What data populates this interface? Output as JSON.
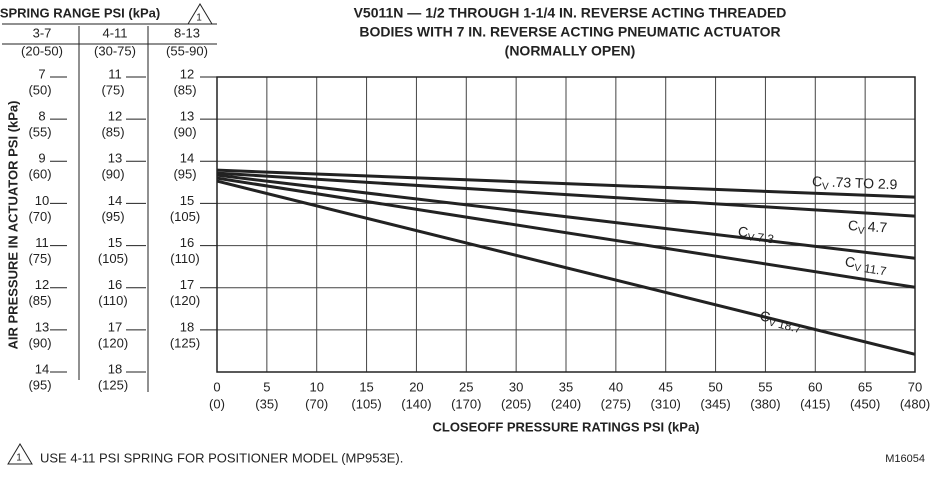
{
  "chart_data": {
    "type": "line",
    "title": [
      "V5011N — 1/2 THROUGH 1-1/4 IN. REVERSE ACTING THREADED",
      "BODIES WITH  7 IN. REVERSE ACTING PNEUMATIC ACTUATOR",
      "(NORMALLY OPEN)"
    ],
    "spring_header": "SPRING RANGE PSI (kPa)",
    "note_marker": "1",
    "y_label": "AIR PRESSURE IN ACTUATOR PSI (kPa)",
    "x_label": "CLOSEOFF  PRESSURE  RATINGS  PSI  (kPa)",
    "footnote": "USE 4-11 PSI SPRING FOR POSITIONER MODEL (MP953E).",
    "figure_id": "M16054",
    "xlim": [
      0,
      70
    ],
    "xticks": [
      {
        "value": 0,
        "label": "0",
        "kpa": "(0)"
      },
      {
        "value": 5,
        "label": "5",
        "kpa": "(35)"
      },
      {
        "value": 10,
        "label": "10",
        "kpa": "(70)"
      },
      {
        "value": 15,
        "label": "15",
        "kpa": "(105)"
      },
      {
        "value": 20,
        "label": "20",
        "kpa": "(140)"
      },
      {
        "value": 25,
        "label": "25",
        "kpa": "(170)"
      },
      {
        "value": 30,
        "label": "30",
        "kpa": "(205)"
      },
      {
        "value": 35,
        "label": "35",
        "kpa": "(240)"
      },
      {
        "value": 40,
        "label": "40",
        "kpa": "(275)"
      },
      {
        "value": 45,
        "label": "45",
        "kpa": "(310)"
      },
      {
        "value": 50,
        "label": "50",
        "kpa": "(345)"
      },
      {
        "value": 55,
        "label": "55",
        "kpa": "(380)"
      },
      {
        "value": 60,
        "label": "60",
        "kpa": "(415)"
      },
      {
        "value": 65,
        "label": "65",
        "kpa": "(450)"
      },
      {
        "value": 70,
        "label": "70",
        "kpa": "(480)"
      }
    ],
    "ylim": [
      12,
      19
    ],
    "y_inverted": true,
    "spring_scales": [
      {
        "header": "3-7",
        "header_kpa": "(20-50)",
        "ylim": [
          7,
          14
        ],
        "ticks": [
          {
            "value": 7,
            "label": "7",
            "kpa": "(50)"
          },
          {
            "value": 8,
            "label": "8",
            "kpa": "(55)"
          },
          {
            "value": 9,
            "label": "9",
            "kpa": "(60)"
          },
          {
            "value": 10,
            "label": "10",
            "kpa": "(70)"
          },
          {
            "value": 11,
            "label": "11",
            "kpa": "(75)"
          },
          {
            "value": 12,
            "label": "12",
            "kpa": "(85)"
          },
          {
            "value": 13,
            "label": "13",
            "kpa": "(90)"
          },
          {
            "value": 14,
            "label": "14",
            "kpa": "(95)"
          }
        ]
      },
      {
        "header": "4-11",
        "header_kpa": "(30-75)",
        "ylim": [
          11,
          18
        ],
        "ticks": [
          {
            "value": 11,
            "label": "11",
            "kpa": "(75)"
          },
          {
            "value": 12,
            "label": "12",
            "kpa": "(85)"
          },
          {
            "value": 13,
            "label": "13",
            "kpa": "(90)"
          },
          {
            "value": 14,
            "label": "14",
            "kpa": "(95)"
          },
          {
            "value": 15,
            "label": "15",
            "kpa": "(105)"
          },
          {
            "value": 16,
            "label": "16",
            "kpa": "(110)"
          },
          {
            "value": 17,
            "label": "17",
            "kpa": "(120)"
          },
          {
            "value": 18,
            "label": "18",
            "kpa": "(125)"
          }
        ]
      },
      {
        "header": "8-13",
        "header_kpa": "(55-90)",
        "ylim": [
          12,
          19
        ],
        "ticks": [
          {
            "value": 12,
            "label": "12",
            "kpa": "(85)"
          },
          {
            "value": 13,
            "label": "13",
            "kpa": "(90)"
          },
          {
            "value": 14,
            "label": "14",
            "kpa": "(95)"
          },
          {
            "value": 15,
            "label": "15",
            "kpa": "(105)"
          },
          {
            "value": 16,
            "label": "16",
            "kpa": "(110)"
          },
          {
            "value": 17,
            "label": "17",
            "kpa": "(120)"
          },
          {
            "value": 18,
            "label": "18",
            "kpa": "(125)"
          }
        ]
      }
    ],
    "grid": true,
    "cv_symbol": "C",
    "cv_subscript": "V",
    "x": [
      0,
      70
    ],
    "series": [
      {
        "name": ".73 TO 2.9",
        "subscript_value": false,
        "color": "#222222",
        "values": [
          14.21,
          14.85
        ]
      },
      {
        "name": "4.7",
        "subscript_value": false,
        "color": "#222222",
        "values": [
          14.28,
          15.3
        ]
      },
      {
        "name": "7.3",
        "subscript_value": true,
        "color": "#222222",
        "values": [
          14.33,
          16.3
        ]
      },
      {
        "name": "11.7",
        "subscript_value": true,
        "color": "#222222",
        "values": [
          14.4,
          16.99
        ]
      },
      {
        "name": "18.7",
        "subscript_value": true,
        "color": "#222222",
        "values": [
          14.47,
          18.58
        ]
      }
    ]
  }
}
